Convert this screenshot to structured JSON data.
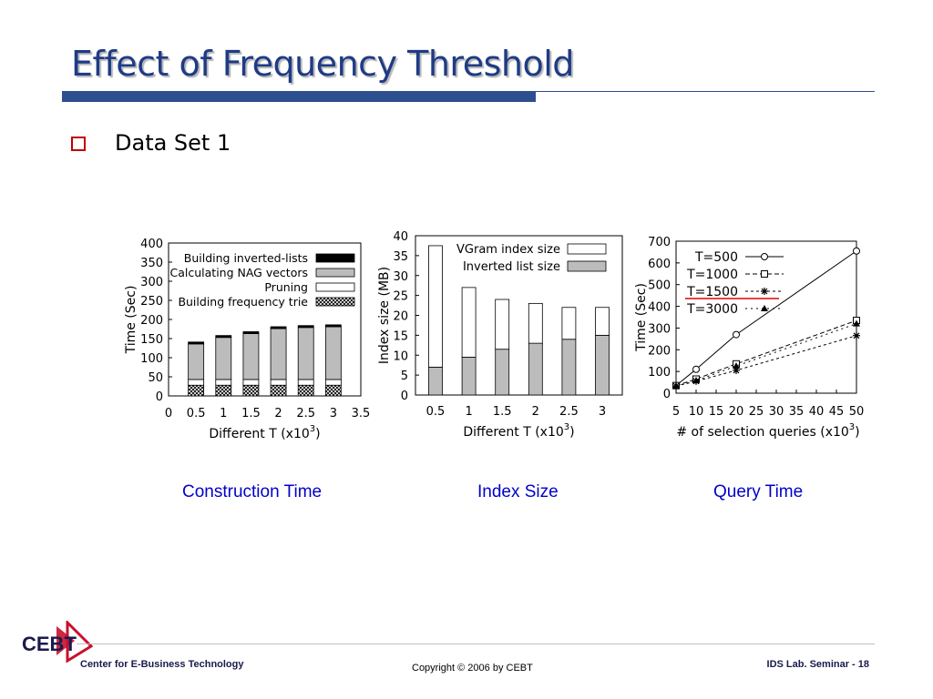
{
  "slide": {
    "title": "Effect of Frequency Threshold",
    "bullet": "Data Set 1",
    "logo_text": "CEBT",
    "footer_left": "Center for E-Business Technology",
    "footer_center": "Copyright © 2006 by CEBT",
    "footer_right": "IDS Lab. Seminar - 18",
    "colors": {
      "title": "#1f3b86",
      "bar": "#2d4e8f",
      "bullet": "#c00000",
      "caption": "#0000cc",
      "logo": "#c8102e"
    }
  },
  "chart_data": [
    {
      "type": "bar",
      "stacked": true,
      "caption": "Construction Time",
      "xlabel": "Different T (x10",
      "xlabel_sup": "3",
      "xlabel_end": ")",
      "ylabel": "Time (Sec)",
      "xlim": [
        0,
        3.5
      ],
      "xticks": [
        "0",
        "0.5",
        "1",
        "1.5",
        "2",
        "2.5",
        "3",
        "3.5"
      ],
      "ylim": [
        0,
        400
      ],
      "yticks": [
        "0",
        "50",
        "100",
        "150",
        "200",
        "250",
        "300",
        "350",
        "400"
      ],
      "x": [
        0.5,
        1,
        1.5,
        2,
        2.5,
        3
      ],
      "series": [
        {
          "name": "Building frequency trie",
          "values": [
            28,
            28,
            28,
            28,
            28,
            28
          ]
        },
        {
          "name": "Pruning",
          "values": [
            15,
            15,
            15,
            15,
            15,
            15
          ]
        },
        {
          "name": "Calculating NAG vectors",
          "values": [
            93,
            110,
            120,
            133,
            136,
            138
          ]
        },
        {
          "name": "Building inverted-lists",
          "values": [
            5,
            5,
            5,
            5,
            5,
            5
          ]
        }
      ],
      "legend_order": [
        "Building inverted-lists",
        "Calculating NAG vectors",
        "Pruning",
        "Building frequency trie"
      ],
      "legend": "top-right"
    },
    {
      "type": "bar",
      "stacked": true,
      "caption": "Index Size",
      "xlabel": "Different T (x10",
      "xlabel_sup": "3",
      "xlabel_end": ")",
      "ylabel": "Index size (MB)",
      "categories": [
        "0.5",
        "1",
        "1.5",
        "2",
        "2.5",
        "3"
      ],
      "ylim": [
        0,
        40
      ],
      "yticks": [
        "0",
        "5",
        "10",
        "15",
        "20",
        "25",
        "30",
        "35",
        "40"
      ],
      "series": [
        {
          "name": "Inverted list size",
          "values": [
            7,
            9.5,
            11.5,
            13,
            14,
            15
          ]
        },
        {
          "name": "VGram index size",
          "values": [
            30.5,
            17.5,
            12.5,
            10,
            8,
            7
          ]
        }
      ],
      "legend_order": [
        "VGram index size",
        "Inverted list size"
      ],
      "legend": "top-right"
    },
    {
      "type": "line",
      "caption": "Query Time",
      "xlabel": "# of selection queries (x10",
      "xlabel_sup": "3",
      "xlabel_end": ")",
      "ylabel": "Time (Sec)",
      "xticks": [
        "5",
        "10",
        "15",
        "20",
        "25",
        "30",
        "35",
        "40",
        "45",
        "50"
      ],
      "xlim": [
        5,
        50
      ],
      "ylim": [
        0,
        700
      ],
      "yticks": [
        "0",
        "100",
        "200",
        "300",
        "400",
        "500",
        "600",
        "700"
      ],
      "series": [
        {
          "name": "T=500",
          "marker": "circle",
          "dash": "",
          "x": [
            5,
            10,
            20,
            50
          ],
          "values": [
            35,
            110,
            270,
            655
          ]
        },
        {
          "name": "T=1000",
          "marker": "square",
          "dash": "5,3",
          "x": [
            5,
            10,
            20,
            50
          ],
          "values": [
            35,
            65,
            135,
            335
          ]
        },
        {
          "name": "T=1500",
          "marker": "star",
          "dash": "3,3",
          "x": [
            5,
            10,
            20,
            50
          ],
          "values": [
            33,
            55,
            105,
            265
          ]
        },
        {
          "name": "T=3000",
          "marker": "triangle",
          "dash": "2,4",
          "x": [
            5,
            10,
            20,
            50
          ],
          "values": [
            33,
            58,
            125,
            320
          ]
        }
      ],
      "legend": "top-left",
      "highlight_series": "T=1500"
    }
  ]
}
